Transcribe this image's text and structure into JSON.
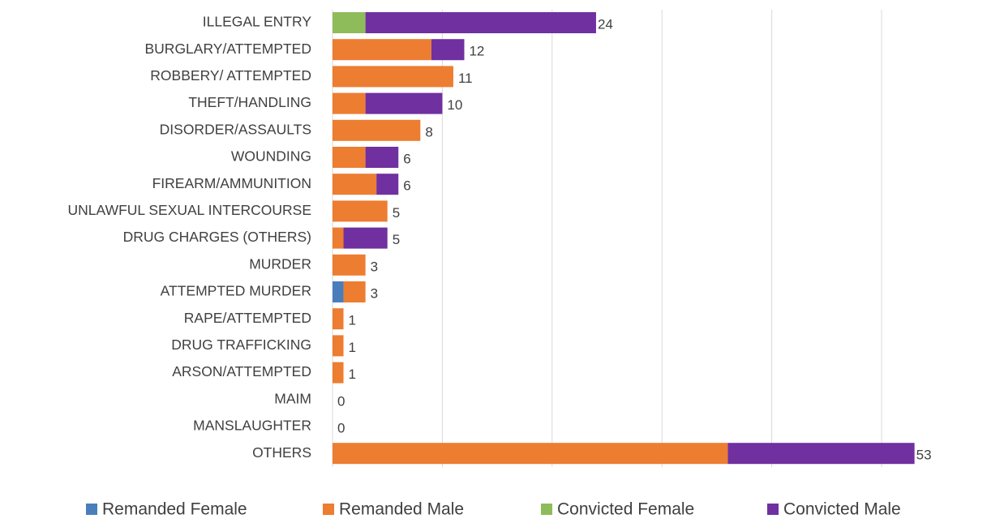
{
  "chart_data": {
    "type": "stacked-bar-horizontal",
    "categories": [
      "ILLEGAL ENTRY",
      "BURGLARY/ATTEMPTED",
      "ROBBERY/ ATTEMPTED",
      "THEFT/HANDLING",
      "DISORDER/ASSAULTS",
      "WOUNDING",
      "FIREARM/AMMUNITION",
      "UNLAWFUL SEXUAL INTERCOURSE",
      "DRUG CHARGES (OTHERS)",
      "MURDER",
      "ATTEMPTED MURDER",
      "RAPE/ATTEMPTED",
      "DRUG TRAFFICKING",
      "ARSON/ATTEMPTED",
      "MAIM",
      "MANSLAUGHTER",
      "OTHERS"
    ],
    "series": [
      {
        "name": "Remanded Female",
        "color": "#4a7ebb",
        "values": [
          0,
          0,
          0,
          0,
          0,
          0,
          0,
          0,
          0,
          0,
          1,
          0,
          0,
          0,
          0,
          0,
          0
        ]
      },
      {
        "name": "Remanded Male",
        "color": "#ed7d31",
        "values": [
          0,
          9,
          11,
          3,
          8,
          3,
          4,
          5,
          1,
          3,
          2,
          1,
          1,
          1,
          0,
          0,
          36
        ]
      },
      {
        "name": "Convicted Female",
        "color": "#8fbc5a",
        "values": [
          3,
          0,
          0,
          0,
          0,
          0,
          0,
          0,
          0,
          0,
          0,
          0,
          0,
          0,
          0,
          0,
          0
        ]
      },
      {
        "name": "Convicted Male",
        "color": "#7030a0",
        "values": [
          21,
          3,
          0,
          7,
          0,
          3,
          2,
          0,
          4,
          0,
          0,
          0,
          0,
          0,
          0,
          0,
          17
        ]
      }
    ],
    "totals": [
      24,
      12,
      11,
      10,
      8,
      6,
      6,
      5,
      5,
      3,
      3,
      1,
      1,
      1,
      0,
      0,
      53
    ],
    "xlim": [
      0,
      55
    ],
    "xticks": [
      0,
      10,
      20,
      30,
      40,
      50
    ],
    "grid": true,
    "legend": "bottom"
  }
}
